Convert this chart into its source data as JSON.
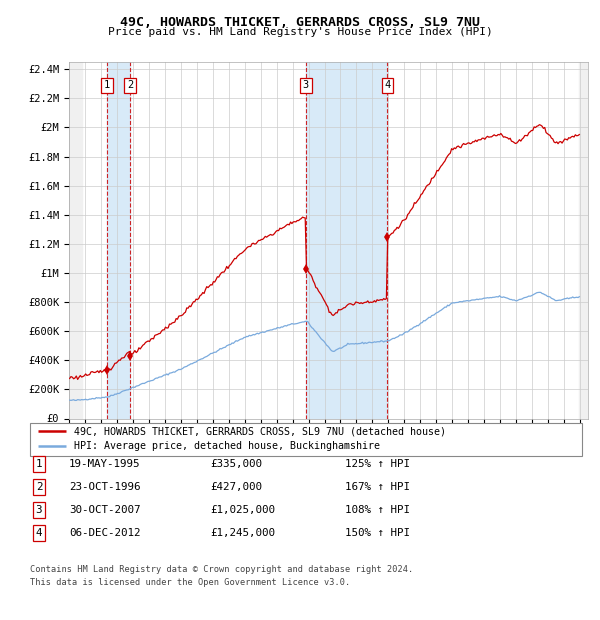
{
  "title1": "49C, HOWARDS THICKET, GERRARDS CROSS, SL9 7NU",
  "title2": "Price paid vs. HM Land Registry's House Price Index (HPI)",
  "legend_line1": "49C, HOWARDS THICKET, GERRARDS CROSS, SL9 7NU (detached house)",
  "legend_line2": "HPI: Average price, detached house, Buckinghamshire",
  "footer1": "Contains HM Land Registry data © Crown copyright and database right 2024.",
  "footer2": "This data is licensed under the Open Government Licence v3.0.",
  "transactions": [
    {
      "num": 1,
      "date": "19-MAY-1995",
      "price": 335000,
      "pct": "125% ↑ HPI",
      "year": 1995.38
    },
    {
      "num": 2,
      "date": "23-OCT-1996",
      "price": 427000,
      "pct": "167% ↑ HPI",
      "year": 1996.82
    },
    {
      "num": 3,
      "date": "30-OCT-2007",
      "price": 1025000,
      "pct": "108% ↑ HPI",
      "year": 2007.83
    },
    {
      "num": 4,
      "date": "06-DEC-2012",
      "price": 1245000,
      "pct": "150% ↑ HPI",
      "year": 2012.93
    }
  ],
  "table_rows": [
    [
      "1",
      "19-MAY-1995",
      "£335,000",
      "125% ↑ HPI"
    ],
    [
      "2",
      "23-OCT-1996",
      "£427,000",
      "167% ↑ HPI"
    ],
    [
      "3",
      "30-OCT-2007",
      "£1,025,000",
      "108% ↑ HPI"
    ],
    [
      "4",
      "06-DEC-2012",
      "£1,245,000",
      "150% ↑ HPI"
    ]
  ],
  "hpi_color": "#7aaadd",
  "price_color": "#cc0000",
  "background_color": "#ffffff",
  "grid_color": "#cccccc",
  "shading_color": "#d8eaf8",
  "yticks": [
    0,
    200000,
    400000,
    600000,
    800000,
    1000000,
    1200000,
    1400000,
    1600000,
    1800000,
    2000000,
    2200000,
    2400000
  ],
  "xlim_start": 1993.0,
  "xlim_end": 2025.5,
  "ylim_top": 2450000
}
